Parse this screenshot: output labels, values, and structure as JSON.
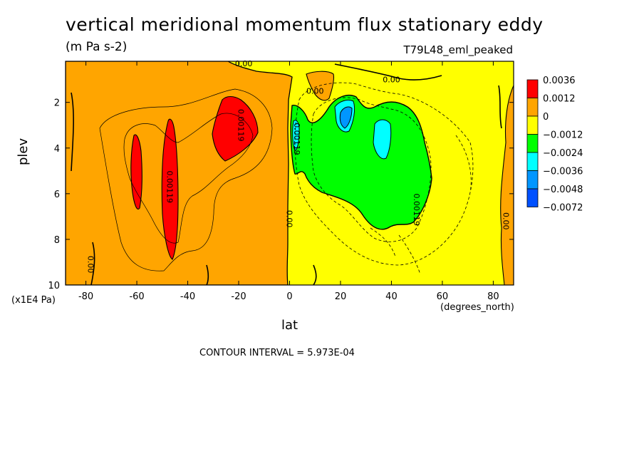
{
  "chart_data": {
    "type": "heatmap",
    "title": "vertical meridional momentum flux stationary eddy",
    "subtitle": "(m Pa s-2)",
    "model_label": "T79L48_eml_peaked",
    "xlabel": "lat",
    "x_unit": "(degrees_north)",
    "ylabel": "plev",
    "y_unit": "(x1E4 Pa)",
    "xlim": [
      -88,
      88
    ],
    "ylim": [
      10,
      0.2
    ],
    "x_ticks": [
      -80,
      -60,
      -40,
      -20,
      0,
      20,
      40,
      60,
      80
    ],
    "y_ticks": [
      2,
      4,
      6,
      8,
      10
    ],
    "contour_interval_text": "CONTOUR INTERVAL = 5.973E-04",
    "colorbar": {
      "labels": [
        "0.0036",
        "0.0012",
        "0",
        "−0.0012",
        "−0.0024",
        "−0.0036",
        "−0.0048",
        "−0.0072"
      ],
      "colors": [
        "#ff0000",
        "#ffa500",
        "#ffff00",
        "#00ff00",
        "#00ffff",
        "#0096ff",
        "#0050ff"
      ]
    },
    "contour_labels": [
      {
        "text": "0.00",
        "lat": -18,
        "plev": 0.3
      },
      {
        "text": "0.00",
        "lat": 40,
        "plev": 1.0
      },
      {
        "text": "0.00",
        "lat": 10,
        "plev": 1.5
      },
      {
        "text": "0.00119",
        "lat": -19,
        "plev": 3.0
      },
      {
        "text": "0.00119",
        "lat": -47,
        "plev": 5.7
      },
      {
        "text": "0.00119",
        "lat": 3,
        "plev": 3.6
      },
      {
        "text": "0.00",
        "lat": 0,
        "plev": 7.1
      },
      {
        "text": "0.00119",
        "lat": 50,
        "plev": 6.7
      },
      {
        "text": "0.00",
        "lat": 85,
        "plev": 7.2
      },
      {
        "text": "0.00",
        "lat": -78,
        "plev": 9.1
      }
    ]
  }
}
